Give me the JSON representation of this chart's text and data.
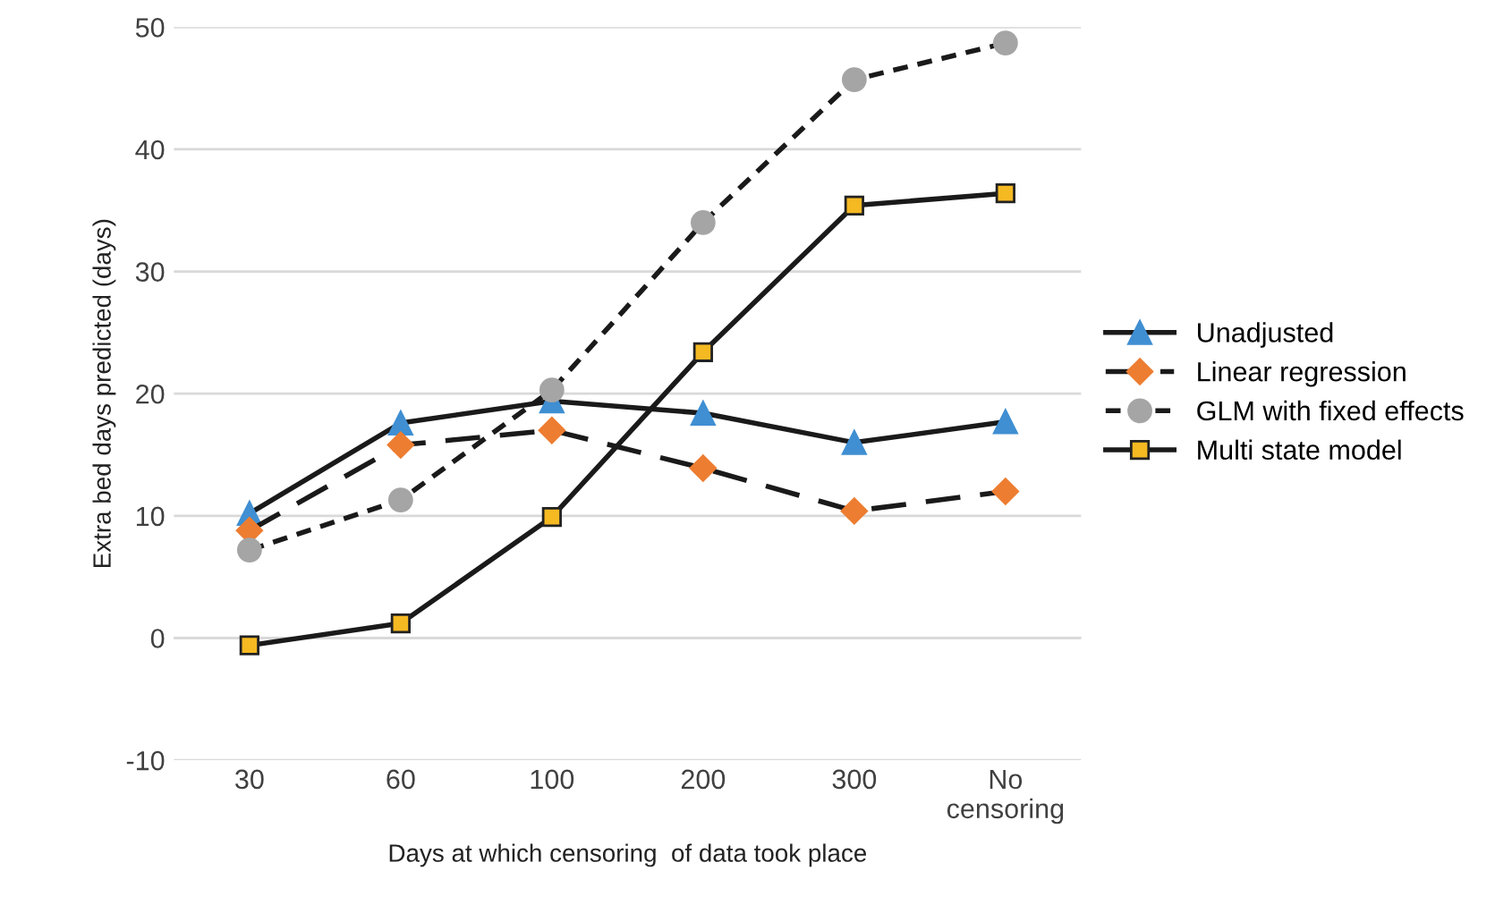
{
  "chart_data": {
    "type": "line",
    "xlabel": "Days at which censoring  of data took place",
    "ylabel": "Extra bed days predicted (days)",
    "categories": [
      "30",
      "60",
      "100",
      "200",
      "300",
      "No\ncensoring"
    ],
    "ylim": [
      -10,
      50
    ],
    "yticks": [
      -10,
      0,
      10,
      20,
      30,
      40,
      50
    ],
    "grid": "y",
    "legend": "right",
    "series": [
      {
        "name": "Unadjusted",
        "color": "#3f8fd2",
        "marker": "triangle",
        "line_style": "solid",
        "values": [
          10.2,
          17.6,
          19.4,
          18.4,
          16.0,
          17.7
        ]
      },
      {
        "name": "Linear regression",
        "color": "#ed7d31",
        "marker": "diamond",
        "line_style": "dashed",
        "values": [
          8.8,
          15.8,
          17.0,
          13.9,
          10.4,
          12.0
        ]
      },
      {
        "name": "GLM with fixed effects",
        "color": "#a5a5a5",
        "marker": "circle",
        "line_style": "dotted",
        "values": [
          7.2,
          11.3,
          20.3,
          34.0,
          45.7,
          48.7
        ]
      },
      {
        "name": "Multi state model",
        "color": "#f5b922",
        "marker": "square",
        "line_style": "solid",
        "values": [
          -0.6,
          1.2,
          9.9,
          23.4,
          35.4,
          36.4
        ]
      }
    ]
  }
}
